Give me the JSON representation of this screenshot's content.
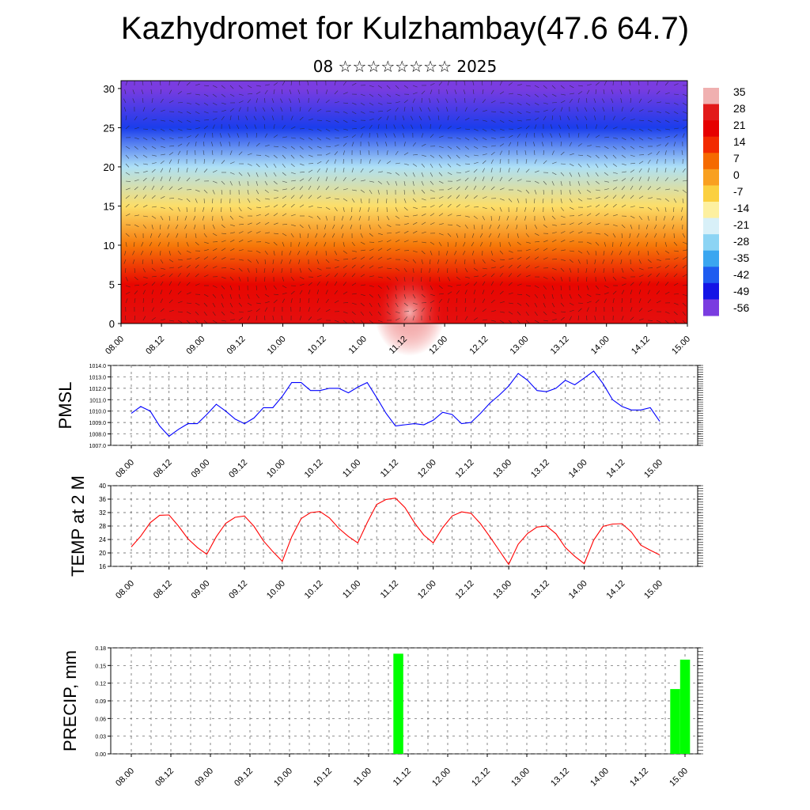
{
  "header": {
    "title": "Kazhydromet for Kulzhambay(47.6 64.7)",
    "subtitle": "08 ☆☆☆☆☆☆☆☆ 2025"
  },
  "time_labels": [
    "08.00",
    "08.12",
    "09.00",
    "09.12",
    "10.00",
    "10.12",
    "11.00",
    "11.12",
    "12.00",
    "12.12",
    "13.00",
    "13.12",
    "14.00",
    "14.12",
    "15.00"
  ],
  "chart_data": [
    {
      "type": "heatmap",
      "title": "",
      "xlabel": "",
      "ylabel": "",
      "x_ticks": [
        "08.00",
        "08.12",
        "09.00",
        "09.12",
        "10.00",
        "10.12",
        "11.00",
        "11.12",
        "12.00",
        "12.12",
        "13.00",
        "13.12",
        "14.00",
        "14.12",
        "15.00"
      ],
      "y_ticks": [
        0,
        5,
        10,
        15,
        20,
        25,
        30
      ],
      "ylim": [
        0,
        31
      ],
      "colorbar_labels": [
        "35",
        "28",
        "21",
        "14",
        "7",
        "0",
        "-7",
        "-14",
        "-21",
        "-28",
        "-35",
        "-42",
        "-49",
        "-56"
      ],
      "colorbar_colors": [
        "#f0b0b0",
        "#e21a1a",
        "#e60000",
        "#f22a00",
        "#f56a00",
        "#f9a020",
        "#fbd040",
        "#fdf0a0",
        "#d8f0f8",
        "#8cd4f4",
        "#3aa6f0",
        "#1e5cf0",
        "#1414e6",
        "#7a3ce0"
      ],
      "temperature_profile": [
        {
          "height": 0,
          "value": 25
        },
        {
          "height": 5,
          "value": 20
        },
        {
          "height": 10,
          "value": 5
        },
        {
          "height": 15,
          "value": -10
        },
        {
          "height": 20,
          "value": -25
        },
        {
          "height": 25,
          "value": -45
        },
        {
          "height": 30,
          "value": -56
        }
      ]
    },
    {
      "type": "line",
      "ylabel": "PMSL",
      "ylim": [
        1007.0,
        1014.0
      ],
      "y_ticks": [
        "1007.0",
        "1008.0",
        "1009.0",
        "1010.0",
        "1011.0",
        "1012.0",
        "1013.0",
        "1014.0"
      ],
      "color": "#0000ff",
      "x": [
        0,
        3,
        6,
        9,
        12,
        15,
        18,
        21,
        24,
        27,
        30,
        33,
        36,
        39,
        42,
        45,
        48,
        51,
        54,
        57,
        60,
        63,
        66,
        69,
        72,
        75,
        78,
        81,
        84,
        87,
        90,
        93,
        96,
        99,
        102,
        105,
        108,
        111,
        114,
        117,
        120,
        123,
        126,
        129,
        132,
        135,
        138,
        141,
        144,
        147,
        150,
        153,
        156,
        159,
        162,
        165,
        168
      ],
      "values": [
        1009.8,
        1010.4,
        1010.0,
        1008.7,
        1007.8,
        1008.4,
        1008.9,
        1008.9,
        1009.7,
        1010.6,
        1010.0,
        1009.3,
        1008.9,
        1009.4,
        1010.3,
        1010.3,
        1011.3,
        1012.5,
        1012.5,
        1011.8,
        1011.8,
        1012.0,
        1012.0,
        1011.6,
        1012.1,
        1012.5,
        1011.2,
        1009.8,
        1008.7,
        1008.8,
        1008.9,
        1008.8,
        1009.2,
        1009.9,
        1009.7,
        1008.9,
        1009.0,
        1009.8,
        1010.7,
        1011.4,
        1012.2,
        1013.3,
        1012.7,
        1011.8,
        1011.7,
        1012.0,
        1012.7,
        1012.3,
        1012.9,
        1013.5,
        1012.4,
        1011.0,
        1010.4,
        1010.1,
        1010.1,
        1010.3,
        1009.1
      ]
    },
    {
      "type": "line",
      "ylabel": "TEMP at 2 M",
      "ylim": [
        16,
        40
      ],
      "y_ticks": [
        "16",
        "20",
        "24",
        "28",
        "32",
        "36",
        "40"
      ],
      "color": "#ff0000",
      "x": [
        0,
        3,
        6,
        9,
        12,
        15,
        18,
        21,
        24,
        27,
        30,
        33,
        36,
        39,
        42,
        45,
        48,
        51,
        54,
        57,
        60,
        63,
        66,
        69,
        72,
        75,
        78,
        81,
        84,
        87,
        90,
        93,
        96,
        99,
        102,
        105,
        108,
        111,
        114,
        117,
        120,
        123,
        126,
        129,
        132,
        135,
        138,
        141,
        144,
        147,
        150,
        153,
        156,
        159,
        162,
        165,
        168
      ],
      "values": [
        21.8,
        25.0,
        29.0,
        31.2,
        31.3,
        28.0,
        24.2,
        21.6,
        19.6,
        24.8,
        28.8,
        30.6,
        31.0,
        27.9,
        23.6,
        20.4,
        17.5,
        24.8,
        30.2,
        32.0,
        32.3,
        30.4,
        27.3,
        24.9,
        23.0,
        29.0,
        34.4,
        35.9,
        36.3,
        33.5,
        29.0,
        25.3,
        23.0,
        27.5,
        31.0,
        32.2,
        31.8,
        28.7,
        24.8,
        20.7,
        16.6,
        22.6,
        25.8,
        27.7,
        28.0,
        25.7,
        21.6,
        19.0,
        16.8,
        23.8,
        27.9,
        28.6,
        28.7,
        26.2,
        22.3,
        20.8,
        19.4
      ]
    },
    {
      "type": "bar",
      "ylabel": "PRECIP, mm",
      "ylim": [
        0,
        0.18
      ],
      "y_ticks": [
        "0.00",
        "0.03",
        "0.06",
        "0.09",
        "0.12",
        "0.15",
        "0.18"
      ],
      "color": "#00ff00",
      "bars": [
        {
          "x": 81,
          "value": 0.17
        },
        {
          "x": 165,
          "value": 0.11
        },
        {
          "x": 168,
          "value": 0.16
        }
      ]
    }
  ]
}
